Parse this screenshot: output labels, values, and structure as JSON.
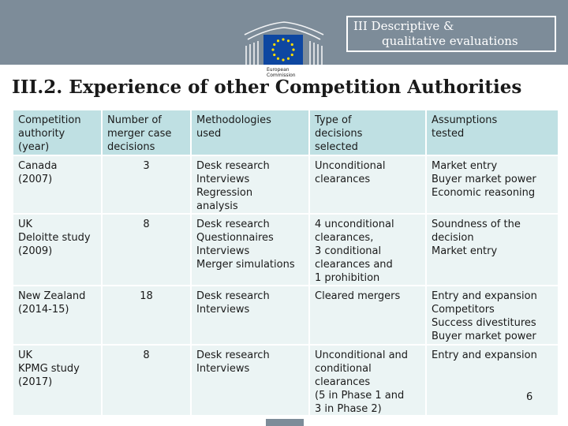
{
  "header": {
    "logo_text": [
      "European",
      "Commission"
    ],
    "section_line1": "III  Descriptive &",
    "section_line2": "qualitative evaluations"
  },
  "title": "III.2. Experience of other Competition Authorities",
  "table": {
    "headers": [
      "Competition\nauthority\n(year)",
      "Number of\nmerger case\ndecisions",
      "Methodologies\nused",
      "Type of\ndecisions\nselected",
      "Assumptions\ntested"
    ],
    "rows": [
      [
        "Canada\n(2007)",
        "3",
        "Desk research\nInterviews\nRegression\nanalysis",
        "Unconditional\nclearances",
        "Market entry\nBuyer market power\nEconomic reasoning"
      ],
      [
        "UK\nDeloitte study\n(2009)",
        "8",
        "Desk research\nQuestionnaires\nInterviews\nMerger simulations",
        "4 unconditional\nclearances,\n3 conditional\nclearances and\n1 prohibition",
        "Soundness of the\ndecision\nMarket entry"
      ],
      [
        "New Zealand\n(2014-15)",
        "18",
        "Desk research\nInterviews",
        "Cleared mergers",
        "Entry and expansion\nCompetitors\nSuccess divestitures\nBuyer market power"
      ],
      [
        "UK\nKPMG study\n(2017)",
        "8",
        "Desk research\nInterviews",
        "Unconditional and\nconditional\nclearances\n(5 in Phase 1 and\n3 in Phase 2)",
        "Entry and expansion"
      ]
    ]
  },
  "page_number": "6",
  "colors": {
    "header_band": "#7d8c99",
    "table_header": "#bfe0e3",
    "table_body": "#ebf4f4",
    "eu_blue": "#0e47a1",
    "eu_gold": "#ffdd00"
  }
}
